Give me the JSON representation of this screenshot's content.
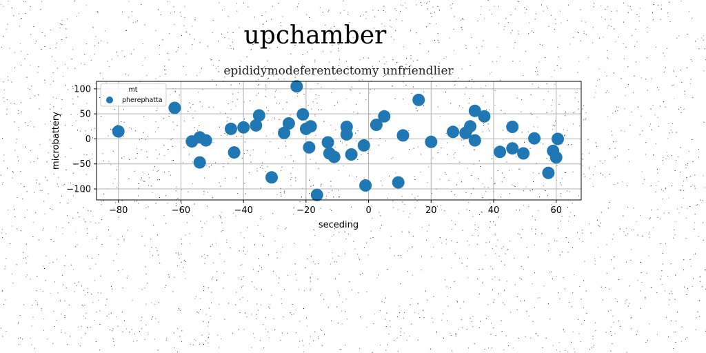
{
  "chart_data": {
    "type": "scatter",
    "suptitle": "upchamber",
    "title": "epididymodeferentectomy unfriendlier",
    "xlabel": "seceding",
    "ylabel": "microbattery",
    "xlim": [
      -87,
      68
    ],
    "ylim": [
      -122,
      115
    ],
    "xticks": [
      -80,
      -60,
      -40,
      -20,
      0,
      20,
      40,
      60
    ],
    "yticks": [
      -100,
      -50,
      0,
      50,
      100
    ],
    "grid": true,
    "legend": {
      "title": "mt",
      "placement": "upper-left",
      "entries": [
        "pherephatta"
      ]
    },
    "colors": {
      "marker": "#1f77b4"
    },
    "series": [
      {
        "name": "pherephatta",
        "x": [
          -80,
          -62,
          -56.5,
          -54,
          -54,
          -52,
          -44,
          -43,
          -40,
          -36,
          -35,
          -31,
          -27,
          -25.5,
          -23,
          -21,
          -20,
          -19,
          -18.5,
          -16.5,
          -13,
          -12.5,
          -11,
          -7,
          -7,
          -5.5,
          -1.5,
          -1,
          2.5,
          5,
          9.5,
          11,
          16,
          20,
          27,
          31,
          32.5,
          34,
          34,
          37,
          42,
          46,
          46,
          49.5,
          53,
          57.5,
          59,
          60,
          60.5
        ],
        "y": [
          15,
          62,
          -5,
          3,
          -47,
          -3,
          20,
          -27,
          23,
          27,
          47,
          -77,
          12,
          31,
          105,
          49,
          20,
          -17,
          25,
          -112,
          -7,
          -29,
          -36,
          24,
          9,
          -31,
          -13,
          -93,
          28,
          45,
          -87,
          7,
          78,
          -6,
          14,
          12,
          25,
          56,
          -3,
          45,
          -26,
          24,
          -19,
          -29,
          1,
          -68,
          -24,
          -37,
          0
        ]
      }
    ]
  }
}
